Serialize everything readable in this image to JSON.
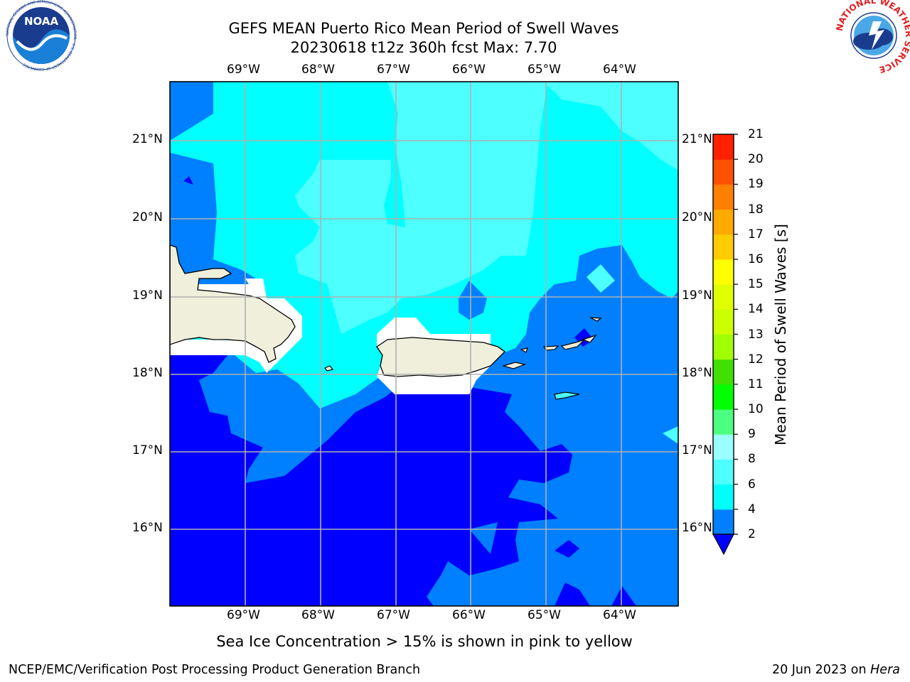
{
  "header": {
    "title_line1": "GEFS MEAN Puerto Rico Mean Period of Swell Waves",
    "title_line2": "20230618 t12z 360h fcst   Max: 7.70"
  },
  "logos": {
    "left": "noaa-logo",
    "right": "national-weather-service-logo",
    "left_text": "NOAA",
    "left_ring_text": "NATIONAL OCEANIC AND ATMOSPHERIC ADMINISTRATION · U.S. DEPARTMENT OF COMMERCE",
    "right_ring_text": "NATIONAL WEATHER SERVICE"
  },
  "map": {
    "lon_labels": [
      "69°W",
      "68°W",
      "67°W",
      "66°W",
      "65°W",
      "64°W"
    ],
    "lat_labels": [
      "21°N",
      "20°N",
      "19°N",
      "18°N",
      "17°N",
      "16°N"
    ],
    "ocean_colors": {
      "lt2": "#0000ff",
      "2_4": "#0080ff",
      "4_6": "#00ffff",
      "6_8": "#4dffff",
      "land": "#efefdc",
      "grid": "#b0b0b0"
    }
  },
  "colorbar": {
    "label": "Mean Period of Swell Waves [s]",
    "ticks": [
      "2",
      "4",
      "6",
      "8",
      "9",
      "10",
      "11",
      "12",
      "13",
      "14",
      "15",
      "16",
      "17",
      "18",
      "19",
      "20",
      "21"
    ],
    "colors": [
      "#0080ff",
      "#00ffff",
      "#4dffff",
      "#99ffff",
      "#4dff80",
      "#00ff00",
      "#40e000",
      "#a0ff00",
      "#ccff00",
      "#e0ff00",
      "#ffff00",
      "#ffcc00",
      "#ffaa00",
      "#ff8000",
      "#ff5000",
      "#ff2000",
      "#ff0000"
    ],
    "extend_color": "#0000ff"
  },
  "footer": {
    "note": "Sea Ice Concentration > 15% is shown in pink to yellow",
    "left": "NCEP/EMC/Verification Post Processing Product Generation Branch",
    "right_date": "20 Jun 2023 on ",
    "right_machine": "Hera"
  }
}
